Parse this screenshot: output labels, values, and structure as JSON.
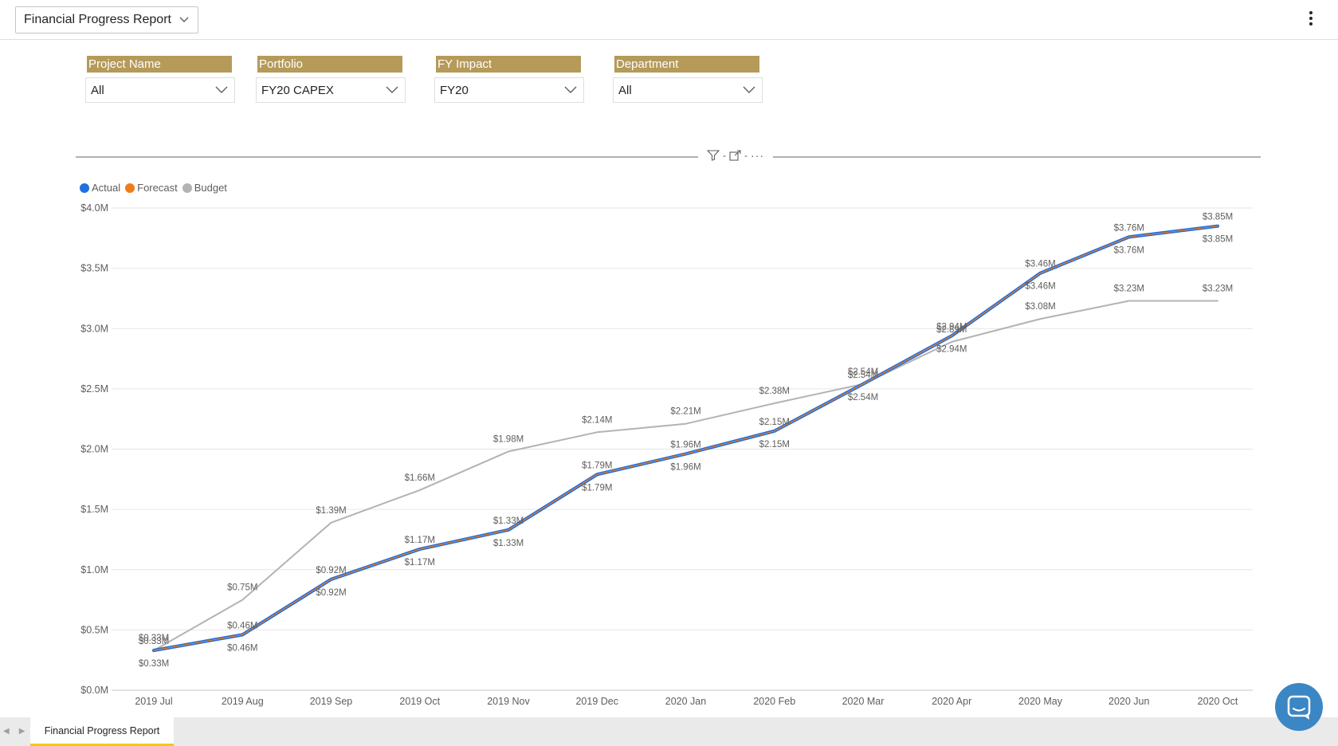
{
  "header": {
    "report_title": "Financial Progress Report"
  },
  "slicers": [
    {
      "label": "Project Name",
      "value": "All"
    },
    {
      "label": "Portfolio",
      "value": "FY20 CAPEX"
    },
    {
      "label": "FY Impact",
      "value": "FY20"
    },
    {
      "label": "Department",
      "value": "All"
    }
  ],
  "visual_tools": {
    "more": "···"
  },
  "legend": [
    {
      "name": "Actual",
      "color": "#1f6fe0"
    },
    {
      "name": "Forecast",
      "color": "#f07c1b"
    },
    {
      "name": "Budget",
      "color": "#b3b3b3"
    }
  ],
  "chart_data": {
    "type": "line",
    "categories": [
      "2019 Jul",
      "2019 Aug",
      "2019 Sep",
      "2019 Oct",
      "2019 Nov",
      "2019 Dec",
      "2020 Jan",
      "2020 Feb",
      "2020 Mar",
      "2020 Apr",
      "2020 May",
      "2020 Jun",
      "2020 Oct"
    ],
    "y_tick_labels": [
      "$0.0M",
      "$0.5M",
      "$1.0M",
      "$1.5M",
      "$2.0M",
      "$2.5M",
      "$3.0M",
      "$3.5M",
      "$4.0M"
    ],
    "ylim": [
      0,
      4.0
    ],
    "grid": true,
    "legend_position": "top-left",
    "series": [
      {
        "name": "Actual",
        "color": "#1f6fe0",
        "values": [
          0.33,
          0.46,
          0.92,
          1.17,
          1.33,
          1.79,
          1.96,
          2.15,
          2.54,
          2.94,
          3.46,
          3.76,
          3.85
        ],
        "labels": [
          "$0.33M",
          "$0.46M",
          "$0.92M",
          "$1.17M",
          "$1.33M",
          "$1.79M",
          "$1.96M",
          "$2.15M",
          "$2.54M",
          "$2.94M",
          "$3.46M",
          "$3.76M",
          "$3.85M"
        ]
      },
      {
        "name": "Forecast",
        "color": "#f07c1b",
        "values": [
          0.33,
          0.46,
          0.92,
          1.17,
          1.33,
          1.79,
          1.96,
          2.15,
          2.54,
          2.94,
          3.46,
          3.76,
          3.85
        ],
        "labels": [
          "$0.33M",
          "$0.46M",
          "$0.92M",
          "$1.17M",
          "$1.33M",
          "$1.79M",
          "$1.96M",
          "$2.15M",
          "$2.54M",
          "$2.94M",
          "$3.46M",
          "$3.76M",
          "$3.85M"
        ]
      },
      {
        "name": "Budget",
        "color": "#b3b3b3",
        "values": [
          0.33,
          0.75,
          1.39,
          1.66,
          1.98,
          2.14,
          2.21,
          2.38,
          2.54,
          2.89,
          3.08,
          3.23,
          3.23
        ],
        "labels": [
          "$0.33M",
          "$0.75M",
          "$1.39M",
          "$1.66M",
          "$1.98M",
          "$2.14M",
          "$2.21M",
          "$2.38M",
          "$2.54M",
          "$2.89M",
          "$3.08M",
          "$3.23M",
          "$3.23M"
        ]
      }
    ]
  },
  "footer": {
    "page_tab": "Financial Progress Report"
  }
}
